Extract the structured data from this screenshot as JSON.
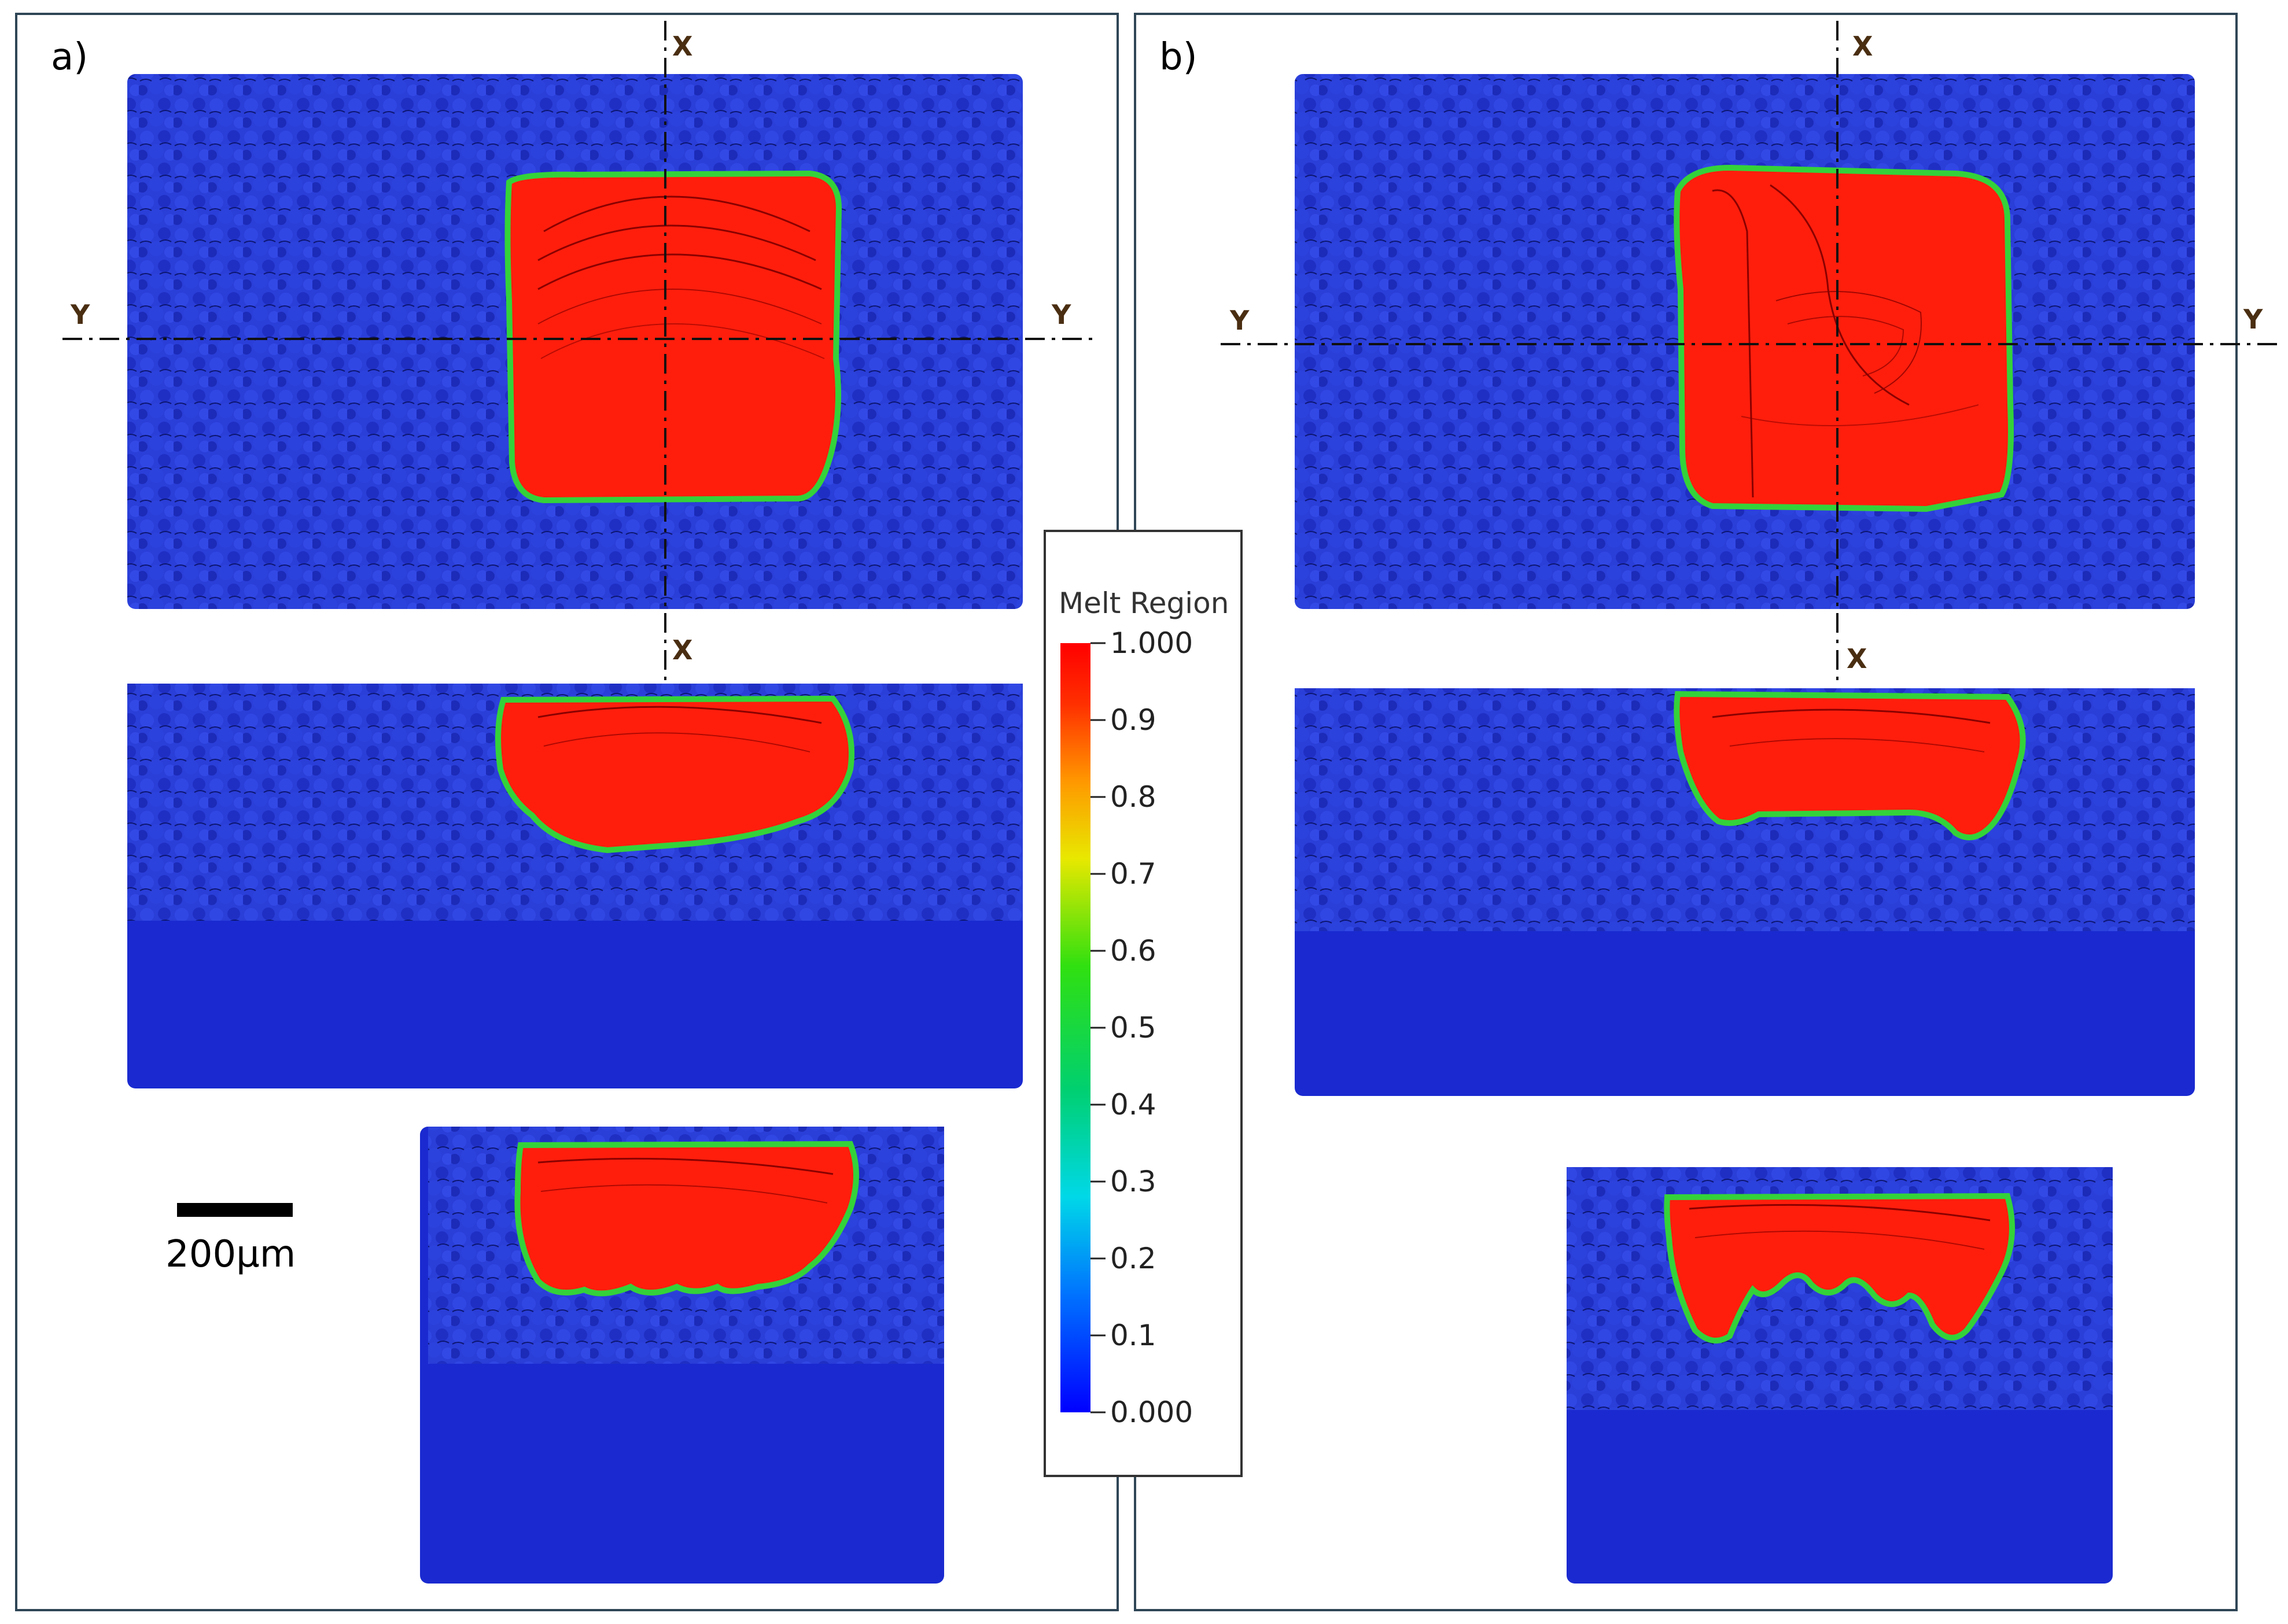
{
  "panels": [
    {
      "label": "a)"
    },
    {
      "label": "b)"
    }
  ],
  "section_labels": {
    "x": "X",
    "y": "Y"
  },
  "colorbar": {
    "title": "Melt Region",
    "ticks": [
      "1.000",
      "0.9",
      "0.8",
      "0.7",
      "0.6",
      "0.5",
      "0.4",
      "0.3",
      "0.2",
      "0.1",
      "0.000"
    ],
    "colormap": [
      "#0000ff",
      "#00a0ff",
      "#00e0e0",
      "#00d060",
      "#40e000",
      "#e0e000",
      "#ffa000",
      "#ff2000",
      "#ff0000"
    ]
  },
  "scale_bar": {
    "label": "200µm"
  },
  "colors": {
    "solid": "#1a2ad0",
    "powder": "#2438d8",
    "melt": "#ff1e0c",
    "melt_edge": "#34d23a",
    "frame": "#2f4656"
  }
}
